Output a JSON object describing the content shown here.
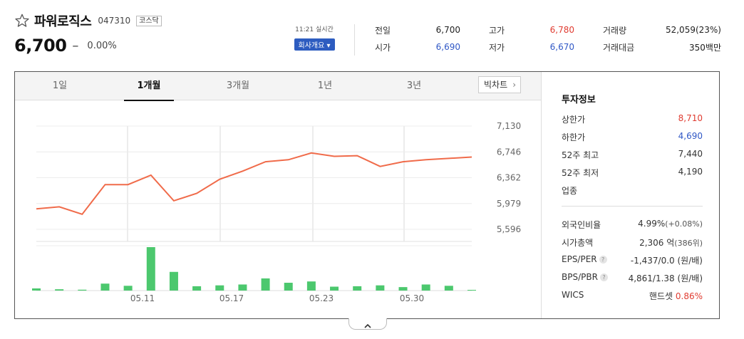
{
  "stock": {
    "name": "파워로직스",
    "code": "047310",
    "market": "코스닥",
    "price": "6,700",
    "change_symbol": "–",
    "change_rate": "0.00%",
    "time": "11:21 실시간",
    "company_button": "회사개요 ▾"
  },
  "quote": {
    "prev_label": "전일",
    "prev": "6,700",
    "open_label": "시가",
    "open": "6,690",
    "high_label": "고가",
    "high": "6,780",
    "low_label": "저가",
    "low": "6,670",
    "volume_label": "거래량",
    "volume": "52,059(23%)",
    "amount_label": "거래대금",
    "amount": "350백만"
  },
  "tabs": [
    {
      "label": "1일",
      "active": false
    },
    {
      "label": "1개월",
      "active": true
    },
    {
      "label": "3개월",
      "active": false
    },
    {
      "label": "1년",
      "active": false
    },
    {
      "label": "3년",
      "active": false
    }
  ],
  "bigchart_label": "빅차트",
  "chart_data": {
    "type": "line",
    "x_ticks": [
      "05.11",
      "05.17",
      "05.23",
      "05.30"
    ],
    "y_ticks": [
      "7,130",
      "6,746",
      "6,362",
      "5,979",
      "5,596"
    ],
    "ylim": [
      5596,
      7130
    ],
    "price": [
      5900,
      5930,
      5820,
      6260,
      6260,
      6400,
      6020,
      6130,
      6340,
      6460,
      6600,
      6630,
      6730,
      6680,
      6690,
      6530,
      6600,
      6630,
      6650,
      6670
    ],
    "volume": [
      5,
      3,
      2,
      16,
      11,
      100,
      43,
      10,
      12,
      14,
      28,
      18,
      21,
      9,
      10,
      12,
      8,
      14,
      11,
      1
    ],
    "line_color": "#f06b4a",
    "bar_color": "#4cc86e",
    "grid": true
  },
  "info": {
    "title": "투자정보",
    "upper_label": "상한가",
    "upper": "8,710",
    "lower_label": "하한가",
    "lower": "4,690",
    "high52_label": "52주 최고",
    "high52": "7,440",
    "low52_label": "52주 최저",
    "low52": "4,190",
    "sector_label": "업종",
    "foreign_label": "외국인비율",
    "foreign_rate": "4.99%",
    "foreign_change": "(+0.08%)",
    "mcap_label": "시가총액",
    "mcap": "2,306 억",
    "mcap_rank": "(386위)",
    "eps_label": "EPS/PER",
    "eps": "-1,437/0.0 (원/배)",
    "bps_label": "BPS/PBR",
    "bps": "4,861/1.38 (원/배)",
    "wics_label": "WICS",
    "wics_name": "핸드셋",
    "wics_change": "0.86%"
  },
  "colors": {
    "up": "#e03c31",
    "down": "#3058c6",
    "accent": "#2d5cc0"
  }
}
